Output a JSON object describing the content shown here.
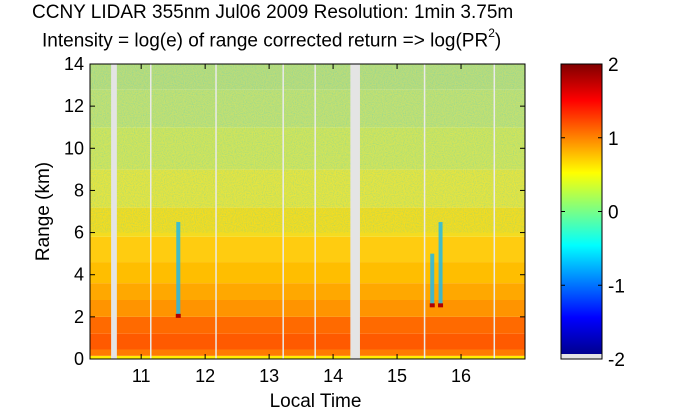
{
  "title": "CCNY LIDAR 355nm Jul06 2009 Resolution: 1min 3.75m",
  "subtitle_main": "Intensity = log(e) of range corrected return => log(PR",
  "subtitle_sup": "2",
  "subtitle_end": ")",
  "chart_data": {
    "type": "heatmap",
    "xlabel": "Local Time",
    "ylabel": "Range (km)",
    "xlim": [
      10.2,
      17.0
    ],
    "ylim": [
      0,
      14
    ],
    "x_ticks": [
      11,
      12,
      13,
      14,
      15,
      16
    ],
    "x_tick_labels": [
      "11",
      "12",
      "13",
      "14",
      "15",
      "16"
    ],
    "y_ticks": [
      0,
      2,
      4,
      6,
      8,
      10,
      12,
      14
    ],
    "y_tick_labels": [
      "0",
      "2",
      "4",
      "6",
      "8",
      "10",
      "12",
      "14"
    ],
    "colorbar": {
      "range": [
        -2,
        2
      ],
      "ticks": [
        2,
        1,
        0,
        -1,
        -2
      ],
      "tick_labels": [
        "2",
        "1",
        "0",
        "-1",
        "-2"
      ],
      "colormap": "jet"
    },
    "data_gaps_hours": [
      [
        10.53,
        10.62
      ],
      [
        14.27,
        14.42
      ]
    ],
    "thin_gaps_hours": [
      11.15,
      12.17,
      13.22,
      13.72,
      15.43,
      16.52
    ],
    "cloud_features": [
      {
        "x": 11.58,
        "y_range_km": [
          2.0,
          6.5
        ]
      },
      {
        "x": 15.55,
        "y_range_km": [
          2.5,
          5.0
        ]
      },
      {
        "x": 15.68,
        "y_range_km": [
          2.5,
          6.5
        ]
      }
    ],
    "grid": false
  }
}
